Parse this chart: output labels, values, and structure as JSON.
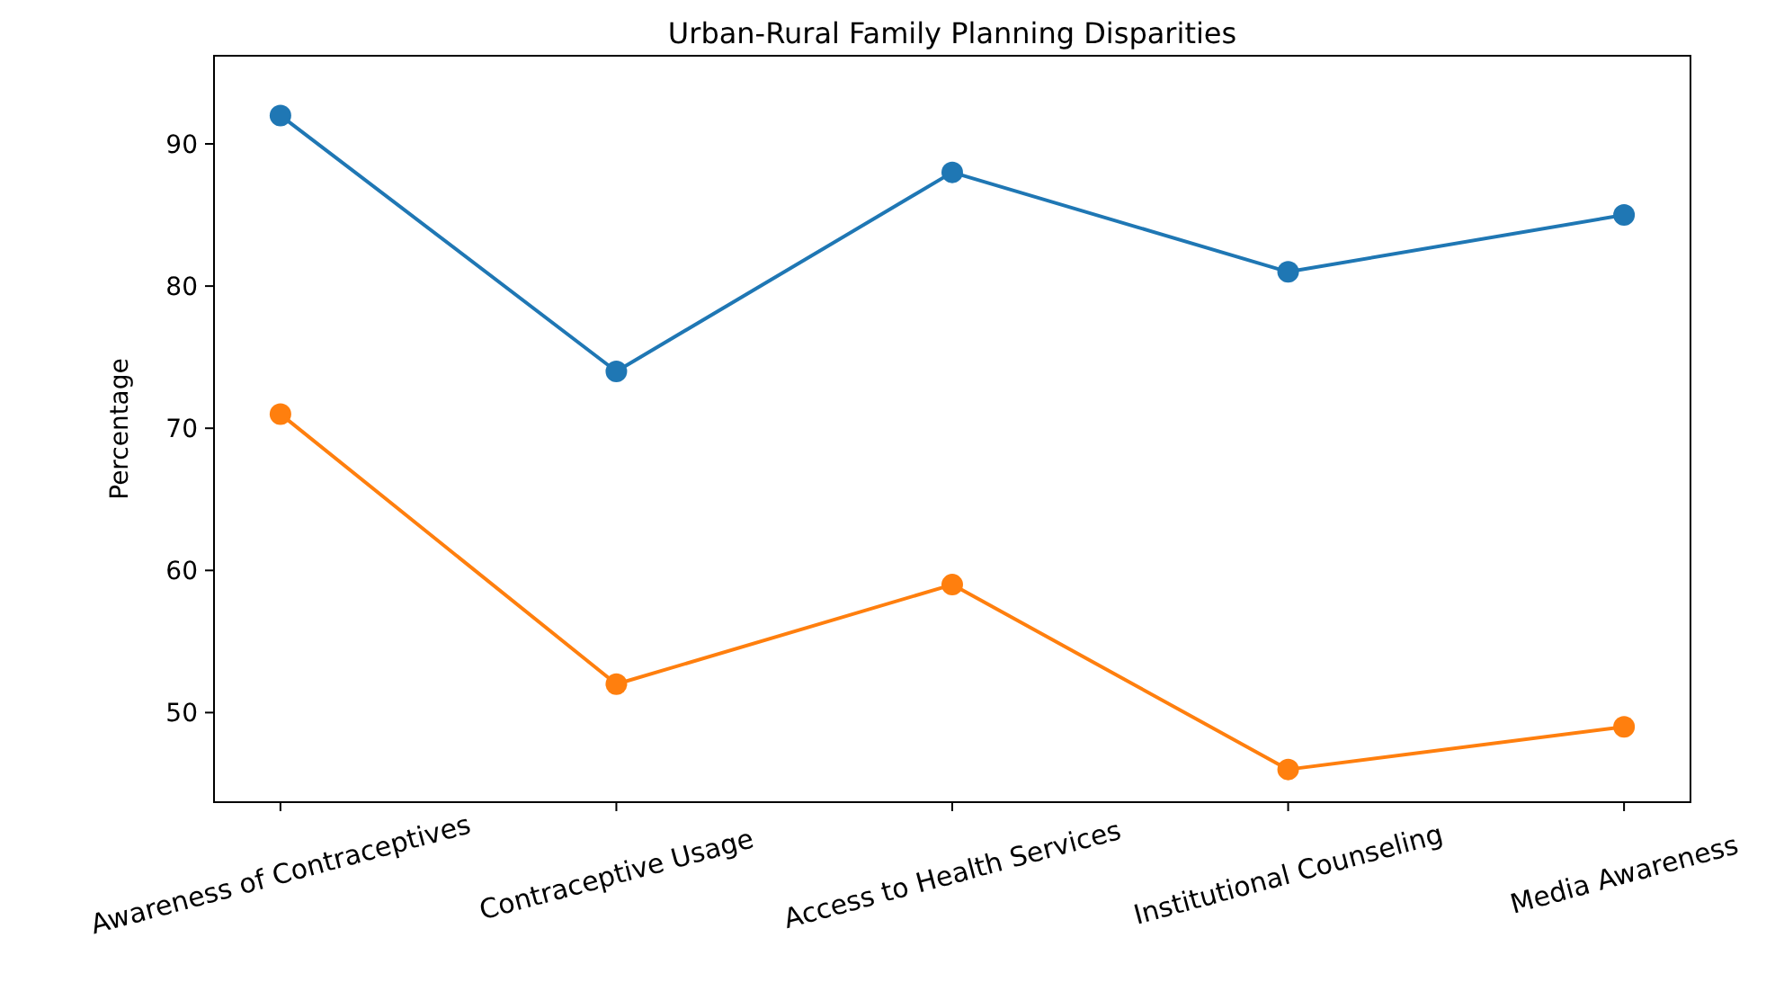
{
  "chart_data": {
    "type": "line",
    "title": "Urban-Rural Family Planning Disparities",
    "ylabel": "Percentage",
    "categories": [
      "Awareness of Contraceptives",
      "Contraceptive Usage",
      "Access to Health Services",
      "Institutional Counseling",
      "Media Awareness"
    ],
    "series": [
      {
        "color": "#1f77b4",
        "values": [
          92,
          74,
          88,
          81,
          85
        ]
      },
      {
        "color": "#ff7f0e",
        "values": [
          71,
          52,
          59,
          46,
          49
        ]
      }
    ],
    "ylim": [
      43.7,
      96.2
    ],
    "yticks": [
      50,
      60,
      70,
      80,
      90
    ],
    "grid": false,
    "marker": "circle",
    "line_style": "solid"
  }
}
